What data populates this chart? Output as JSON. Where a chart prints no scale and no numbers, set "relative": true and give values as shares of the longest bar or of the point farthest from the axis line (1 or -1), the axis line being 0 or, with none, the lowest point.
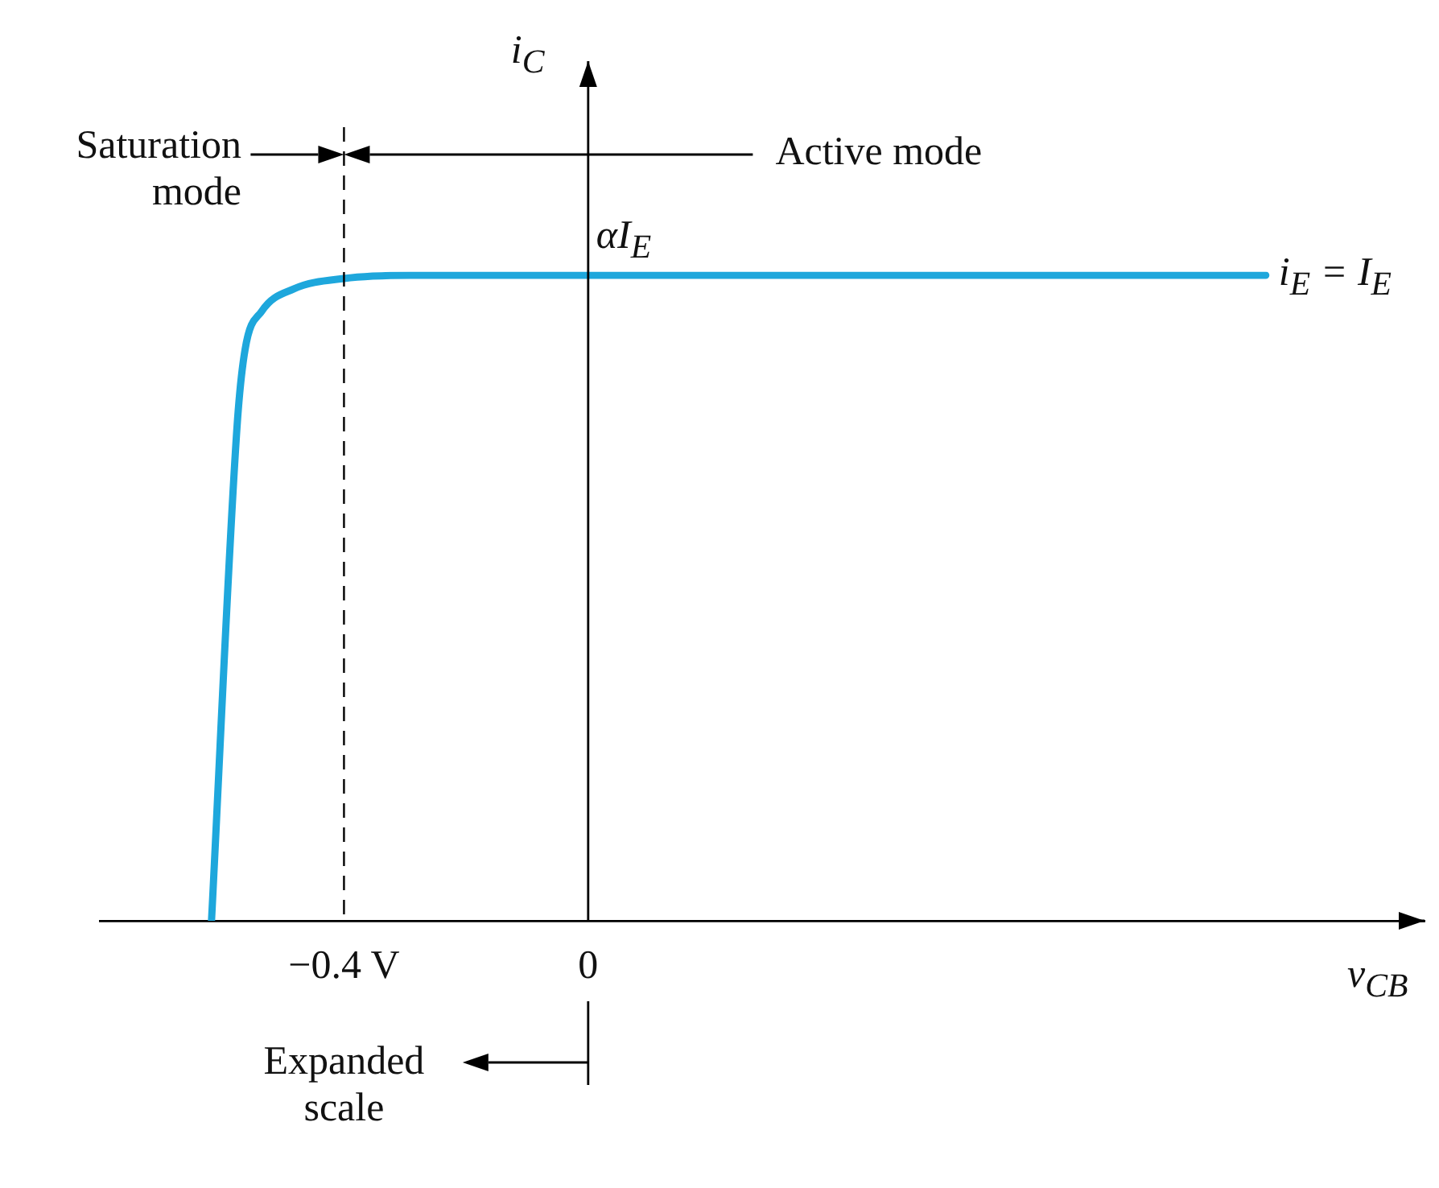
{
  "chart_data": {
    "type": "line",
    "xlabel": "v$_{CB}$",
    "ylabel": "i$_{C}$",
    "relative": true,
    "xlim": [
      -0.8,
      1.37
    ],
    "xticks": [
      {
        "value": -0.4,
        "label": "−0.4 V"
      },
      0
    ],
    "grid": false,
    "legend": false,
    "x": [
      -0.617,
      -0.575,
      -0.562,
      -0.535,
      -0.482,
      -0.4,
      -0.283,
      1.11
    ],
    "series": [
      {
        "name": "i$_{E}$ = I$_{E}$",
        "color": "#1ea7dc",
        "values": [
          0,
          0.768,
          0.885,
          0.944,
          0.979,
          0.995,
          1,
          1
        ]
      }
    ],
    "ref_lines": [
      {
        "axis": "x",
        "value": -0.4,
        "line_style": "dashed",
        "color": "#000000"
      }
    ],
    "annotations": [
      "Saturation mode",
      "Active mode",
      "Expanded scale",
      {
        "text": "αI$_{E}$",
        "x": 0,
        "y": 1
      }
    ]
  }
}
